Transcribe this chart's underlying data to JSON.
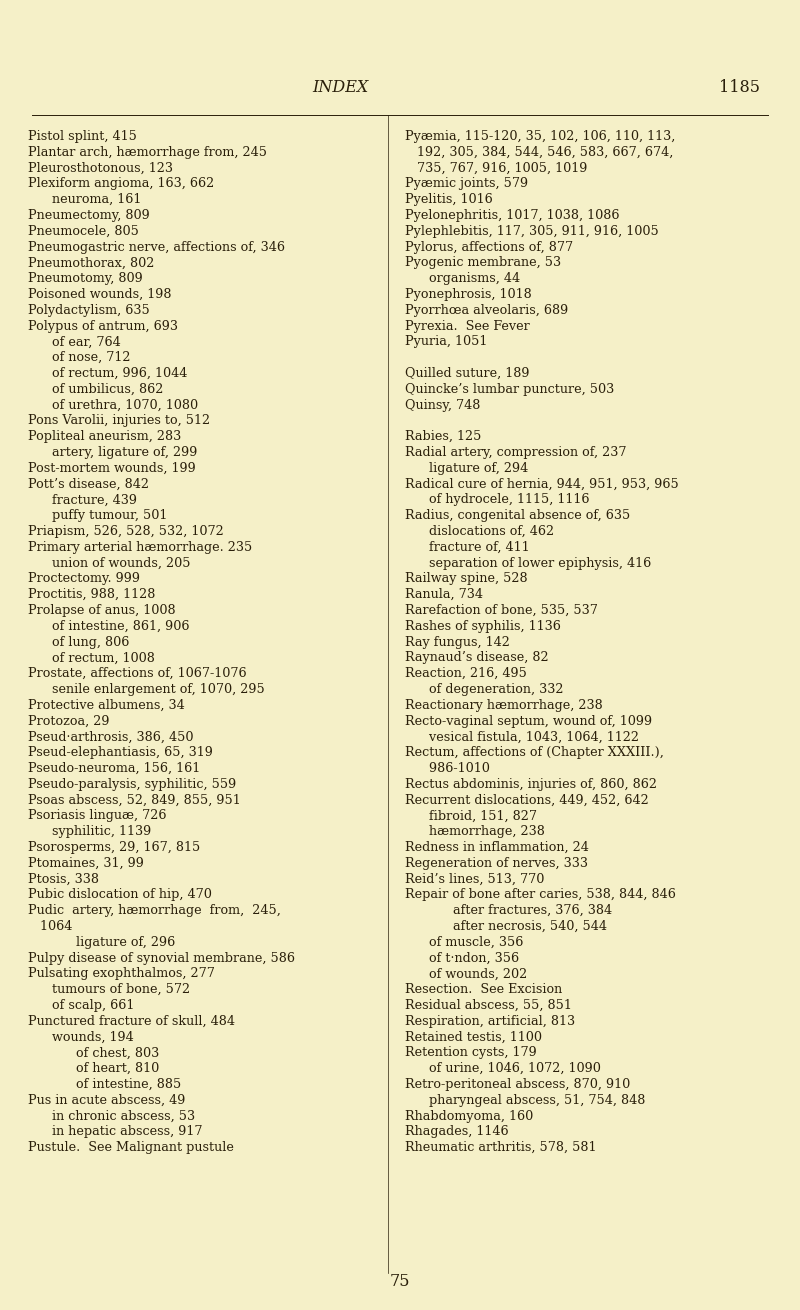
{
  "bg_color": "#f5f0c8",
  "text_color": "#2a1f0a",
  "title": "INDEX",
  "page_number": "1185",
  "footer_number": "75",
  "title_fontsize": 11.5,
  "body_fontsize": 9.2,
  "left_lines": [
    "Pistol splint, 415",
    "Plantar arch, hæmorrhage from, 245",
    "Pleurosthotonous, 123",
    "Plexiform angioma, 163, 662",
    "      neuroma, 161",
    "Pneumectomy, 809",
    "Pneumocele, 805",
    "Pneumogastric nerve, affections of, 346",
    "Pneumothorax, 802",
    "Pneumotomy, 809",
    "Poisoned wounds, 198",
    "Polydactylism, 635",
    "Polypus of antrum, 693",
    "      of ear, 764",
    "      of nose, 712",
    "      of rectum, 996, 1044",
    "      of umbilicus, 862",
    "      of urethra, 1070, 1080",
    "Pons Varolii, injuries to, 512",
    "Popliteal aneurism, 283",
    "      artery, ligature of, 299",
    "Post-mortem wounds, 199",
    "Pott’s disease, 842",
    "      fracture, 439",
    "      puffy tumour, 501",
    "Priapism, 526, 528, 532, 1072",
    "Primary arterial hæmorrhage. 235",
    "      union of wounds, 205",
    "Proctectomy. 999",
    "Proctitis, 988, 1128",
    "Prolapse of anus, 1008",
    "      of intestine, 861, 906",
    "      of lung, 806",
    "      of rectum, 1008",
    "Prostate, affections of, 1067-1076",
    "      senile enlargement of, 1070, 295",
    "Protective albumens, 34",
    "Protozoa, 29",
    "Pseud·arthrosis, 386, 450",
    "Pseud-elephantiasis, 65, 319",
    "Pseudo-neuroma, 156, 161",
    "Pseudo-paralysis, syphilitic, 559",
    "Psoas abscess, 52, 849, 855, 951",
    "Psoriasis linguæ, 726",
    "      syphilitic, 1139",
    "Psorosperms, 29, 167, 815",
    "Ptomaines, 31, 99",
    "Ptosis, 338",
    "Pubic dislocation of hip, 470",
    "Pudic  artery, hæmorrhage  from,  245,",
    "   1064",
    "            ligature of, 296",
    "Pulpy disease of synovial membrane, 586",
    "Pulsating exophthalmos, 277",
    "      tumours of bone, 572",
    "      of scalp, 661",
    "Punctured fracture of skull, 484",
    "      wounds, 194",
    "            of chest, 803",
    "            of heart, 810",
    "            of intestine, 885",
    "Pus in acute abscess, 49",
    "      in chronic abscess, 53",
    "      in hepatic abscess, 917",
    "Pustule.  See Malignant pustule"
  ],
  "right_lines": [
    "Pyæmia, 115-120, 35, 102, 106, 110, 113,",
    "   192, 305, 384, 544, 546, 583, 667, 674,",
    "   735, 767, 916, 1005, 1019",
    "Pyæmic joints, 579",
    "Pyelitis, 1016",
    "Pyelonephritis, 1017, 1038, 1086",
    "Pylephlebitis, 117, 305, 911, 916, 1005",
    "Pylorus, affections of, 877",
    "Pyogenic membrane, 53",
    "      organisms, 44",
    "Pyonephrosis, 1018",
    "Pyorrhœa alveolaris, 689",
    "Pyrexia.  See Fever",
    "Pyuria, 1051",
    "",
    "Quilled suture, 189",
    "Quincke’s lumbar puncture, 503",
    "Quinsy, 748",
    "",
    "Rabies, 125",
    "Radial artery, compression of, 237",
    "      ligature of, 294",
    "Radical cure of hernia, 944, 951, 953, 965",
    "      of hydrocele, 1115, 1116",
    "Radius, congenital absence of, 635",
    "      dislocations of, 462",
    "      fracture of, 411",
    "      separation of lower epiphysis, 416",
    "Railway spine, 528",
    "Ranula, 734",
    "Rarefaction of bone, 535, 537",
    "Rashes of syphilis, 1136",
    "Ray fungus, 142",
    "Raynaud’s disease, 82",
    "Reaction, 216, 495",
    "      of degeneration, 332",
    "Reactionary hæmorrhage, 238",
    "Recto-vaginal septum, wound of, 1099",
    "      vesical fistula, 1043, 1064, 1122",
    "Rectum, affections of (Chapter XXXIII.),",
    "      986-1010",
    "Rectus abdominis, injuries of, 860, 862",
    "Recurrent dislocations, 449, 452, 642",
    "      fibroid, 151, 827",
    "      hæmorrhage, 238",
    "Redness in inflammation, 24",
    "Regeneration of nerves, 333",
    "Reid’s lines, 513, 770",
    "Repair of bone after caries, 538, 844, 846",
    "            after fractures, 376, 384",
    "            after necrosis, 540, 544",
    "      of muscle, 356",
    "      of t·ndon, 356",
    "      of wounds, 202",
    "Resection.  See Excision",
    "Residual abscess, 55, 851",
    "Respiration, artificial, 813",
    "Retained testis, 1100",
    "Retention cysts, 179",
    "      of urine, 1046, 1072, 1090",
    "Retro-peritoneal abscess, 870, 910",
    "      pharyngeal abscess, 51, 754, 848",
    "Rhabdomyoma, 160",
    "Rhagades, 1146",
    "Rheumatic arthritis, 578, 581"
  ]
}
